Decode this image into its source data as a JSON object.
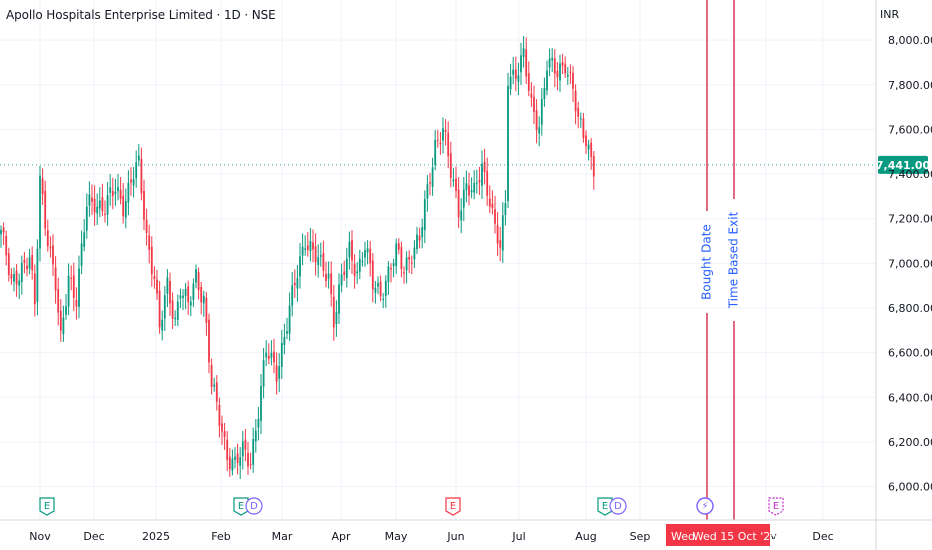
{
  "header": {
    "title": "Apollo Hospitals Enterprise Limited · 1D · NSE",
    "currency": "INR"
  },
  "colors": {
    "up": "#089981",
    "down": "#f23645",
    "grid": "#f0f3fa",
    "axis_text": "#131722",
    "marker_line": "#d6294a",
    "marker_text": "#2962ff",
    "price_tag": "#089981",
    "time_tag": "#f23645",
    "earnings_past": "#089981",
    "earnings_recent": "#f23645",
    "dividend": "#7b61ff"
  },
  "chart_data": {
    "type": "candlestick",
    "yticks": [
      "8,000.00",
      "7,800.00",
      "7,600.00",
      "7,400.00",
      "7,200.00",
      "7,000.00",
      "6,800.00",
      "6,600.00",
      "6,400.00",
      "6,200.00",
      "6,000.00"
    ],
    "ytick_values": [
      8000,
      7800,
      7600,
      7400,
      7200,
      7000,
      6800,
      6600,
      6400,
      6200,
      6000
    ],
    "ylim": [
      5850,
      8180
    ],
    "xticks": [
      "Nov",
      "Dec",
      "2025",
      "Feb",
      "Mar",
      "Apr",
      "May",
      "Jun",
      "Jul",
      "Aug",
      "Sep",
      "Wed",
      "Wed 15 Oct '25",
      "Nov",
      "Dec"
    ],
    "last_price": 7441.0,
    "last_price_label": "7,441.00",
    "markers": [
      {
        "label": "Bought Date",
        "date_index": 246
      },
      {
        "label": "Time Based Exit",
        "date_index": 253
      }
    ],
    "x_labels": [
      "Nov",
      "Dec",
      "2025",
      "Feb",
      "Mar",
      "Apr",
      "May",
      "Jun",
      "Jul",
      "Aug",
      "Sep",
      "Nov",
      "Dec"
    ],
    "highlight_labels": [
      "Wed",
      "Wed 15 Oct '25"
    ],
    "events": [
      {
        "type": "earnings",
        "label": "E",
        "style": "past"
      },
      {
        "type": "earnings",
        "label": "E",
        "style": "past",
        "group": "dividend",
        "extra": "D"
      },
      {
        "type": "earnings",
        "label": "E",
        "style": "recent"
      },
      {
        "type": "earnings",
        "label": "E",
        "style": "past",
        "group": "dividend",
        "extra": "D"
      },
      {
        "type": "dividend",
        "label": "⚡",
        "style": "dividend"
      },
      {
        "type": "earnings",
        "label": "E",
        "style": "upcoming"
      }
    ],
    "series_anchors": [
      [
        0,
        7150
      ],
      [
        4,
        6900
      ],
      [
        8,
        6990
      ],
      [
        11,
        7020
      ],
      [
        13,
        6800
      ],
      [
        15,
        7380
      ],
      [
        17,
        7200
      ],
      [
        21,
        6900
      ],
      [
        23,
        6640
      ],
      [
        26,
        6950
      ],
      [
        29,
        6850
      ],
      [
        33,
        7250
      ],
      [
        36,
        7280
      ],
      [
        40,
        7250
      ],
      [
        44,
        7330
      ],
      [
        47,
        7270
      ],
      [
        51,
        7400
      ],
      [
        53,
        7430
      ],
      [
        56,
        7120
      ],
      [
        59,
        6950
      ],
      [
        61,
        6700
      ],
      [
        64,
        6890
      ],
      [
        67,
        6750
      ],
      [
        69,
        6900
      ],
      [
        72,
        6800
      ],
      [
        75,
        6940
      ],
      [
        78,
        6850
      ],
      [
        81,
        6450
      ],
      [
        84,
        6300
      ],
      [
        87,
        6150
      ],
      [
        90,
        6100
      ],
      [
        93,
        6150
      ],
      [
        96,
        6120
      ],
      [
        99,
        6350
      ],
      [
        102,
        6600
      ],
      [
        106,
        6520
      ],
      [
        110,
        6730
      ],
      [
        113,
        6900
      ],
      [
        117,
        7120
      ],
      [
        120,
        7050
      ],
      [
        123,
        6980
      ],
      [
        126,
        6950
      ],
      [
        128,
        6760
      ],
      [
        131,
        6920
      ],
      [
        134,
        7050
      ],
      [
        137,
        6970
      ],
      [
        140,
        7080
      ],
      [
        143,
        6900
      ],
      [
        146,
        6870
      ],
      [
        149,
        6960
      ],
      [
        152,
        7040
      ],
      [
        155,
        6980
      ],
      [
        158,
        7060
      ],
      [
        161,
        7100
      ],
      [
        164,
        7320
      ],
      [
        167,
        7540
      ],
      [
        170,
        7600
      ],
      [
        173,
        7400
      ],
      [
        176,
        7250
      ],
      [
        179,
        7350
      ],
      [
        182,
        7300
      ],
      [
        185,
        7440
      ],
      [
        188,
        7300
      ],
      [
        190,
        7150
      ],
      [
        192,
        7060
      ],
      [
        194,
        7260
      ],
      [
        195,
        7840
      ],
      [
        198,
        7860
      ],
      [
        201,
        7920
      ],
      [
        204,
        7700
      ],
      [
        207,
        7630
      ],
      [
        210,
        7890
      ],
      [
        214,
        7850
      ],
      [
        217,
        7910
      ],
      [
        220,
        7780
      ],
      [
        222,
        7620
      ],
      [
        225,
        7560
      ],
      [
        228,
        7441
      ]
    ],
    "series_length": 229
  }
}
